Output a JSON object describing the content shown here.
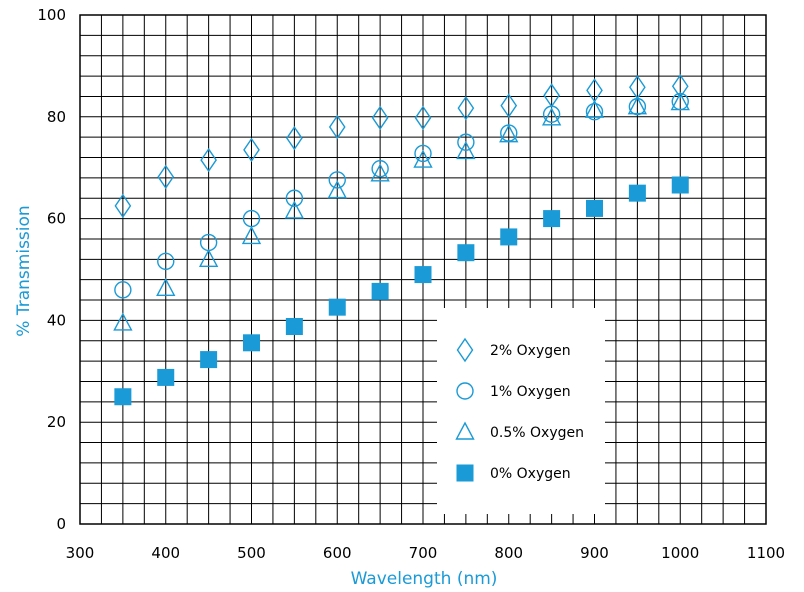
{
  "chart_data": {
    "type": "scatter",
    "title": "",
    "xlabel": "Wavelength (nm)",
    "ylabel": "% Transmission",
    "xlim": [
      300,
      1100
    ],
    "ylim": [
      0,
      100
    ],
    "xticks": [
      300,
      400,
      500,
      600,
      700,
      800,
      900,
      1000,
      1100
    ],
    "yticks": [
      0,
      20,
      40,
      60,
      80,
      100
    ],
    "grid": true,
    "legend_position": "lower-right",
    "marker_color": "#1a9ad6",
    "series": [
      {
        "name": "2% Oxygen",
        "marker": "diamond-open",
        "x": [
          350,
          400,
          450,
          500,
          550,
          600,
          650,
          700,
          750,
          800,
          850,
          900,
          950,
          1000
        ],
        "y": [
          62.5,
          68.2,
          71.5,
          73.5,
          75.8,
          78,
          79.8,
          79.8,
          81.7,
          82.2,
          84.2,
          85.2,
          85.8,
          86
        ]
      },
      {
        "name": "1% Oxygen",
        "marker": "circle-open",
        "x": [
          350,
          400,
          450,
          500,
          550,
          600,
          650,
          700,
          750,
          800,
          850,
          900,
          950,
          1000
        ],
        "y": [
          46,
          51.6,
          55.3,
          60,
          64,
          67.6,
          69.8,
          72.8,
          75,
          76.8,
          80.5,
          81,
          82,
          83
        ]
      },
      {
        "name": "0.5% Oxygen",
        "marker": "triangle-open",
        "x": [
          350,
          400,
          450,
          500,
          550,
          600,
          650,
          700,
          750,
          800,
          850,
          900,
          950,
          1000
        ],
        "y": [
          39.5,
          46.3,
          52,
          56.5,
          61.5,
          65.5,
          68.8,
          71.5,
          73.2,
          76.5,
          79.8,
          81.3,
          82,
          82.8
        ]
      },
      {
        "name": "0% Oxygen",
        "marker": "square-filled",
        "x": [
          350,
          400,
          450,
          500,
          550,
          600,
          650,
          700,
          750,
          800,
          850,
          900,
          950,
          1000
        ],
        "y": [
          25,
          28.8,
          32.3,
          35.6,
          38.8,
          42.6,
          45.7,
          49,
          53.3,
          56.4,
          60,
          62,
          65,
          66.6
        ]
      }
    ]
  }
}
